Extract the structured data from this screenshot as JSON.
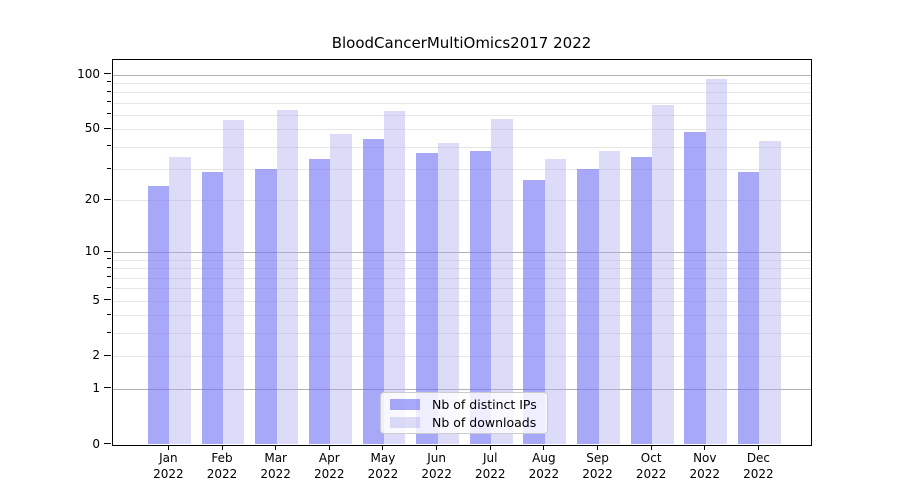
{
  "title": "BloodCancerMultiOmics2017 2022",
  "chart_data": {
    "type": "bar",
    "title": "BloodCancerMultiOmics2017 2022",
    "categories": [
      "Jan",
      "Feb",
      "Mar",
      "Apr",
      "May",
      "Jun",
      "Jul",
      "Aug",
      "Sep",
      "Oct",
      "Nov",
      "Dec"
    ],
    "x_year_label": "2022",
    "series": [
      {
        "name": "Nb of distinct IPs",
        "color": "rgba(115,115,244,0.62)",
        "values": [
          24,
          29,
          30,
          34,
          44,
          37,
          38,
          26,
          30,
          35,
          48,
          29
        ]
      },
      {
        "name": "Nb of downloads",
        "color": "rgba(172,172,238,0.42)",
        "values": [
          35,
          56,
          64,
          47,
          63,
          42,
          57,
          34,
          38,
          68,
          94,
          43
        ]
      }
    ],
    "y_axis": {
      "scale": "log10(1+y)",
      "tick_values": [
        0,
        1,
        2,
        5,
        10,
        20,
        50,
        100
      ],
      "tick_labels": [
        "0",
        "1",
        "2",
        "5",
        "10",
        "20",
        "50",
        "100"
      ],
      "major_gridlines": [
        1,
        10,
        100
      ],
      "minor_gridlines": [
        2,
        3,
        4,
        5,
        6,
        7,
        8,
        9,
        20,
        30,
        40,
        50,
        60,
        70,
        80,
        90
      ],
      "ylim": [
        0,
        120
      ]
    },
    "legend_position": "lower center",
    "grid": true,
    "colors": {
      "spine": "#000000",
      "major_grid": "#b0b0b0",
      "minor_grid": "#e7e7e7",
      "legend_border": "#cccccc"
    }
  }
}
